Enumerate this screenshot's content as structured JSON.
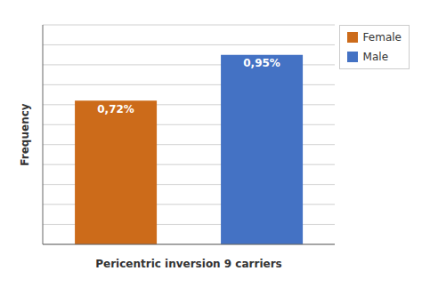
{
  "chart_data": {
    "type": "bar",
    "categories": [
      "Female",
      "Male"
    ],
    "values": [
      0.72,
      0.95
    ],
    "value_labels": [
      "0,72%",
      "0,95%"
    ],
    "colors": [
      "#CC6B1A",
      "#4472C4"
    ],
    "xlabel": "Pericentric inversion 9 carriers",
    "ylabel": "Frequency",
    "ylim": [
      0,
      1.1
    ],
    "yticks": [
      0.0,
      0.1,
      0.2,
      0.3,
      0.4,
      0.5,
      0.6,
      0.7,
      0.8,
      0.9,
      1.0,
      1.1
    ],
    "grid": true,
    "legend": "upper right",
    "data_labels": true,
    "tick_labels": false
  }
}
